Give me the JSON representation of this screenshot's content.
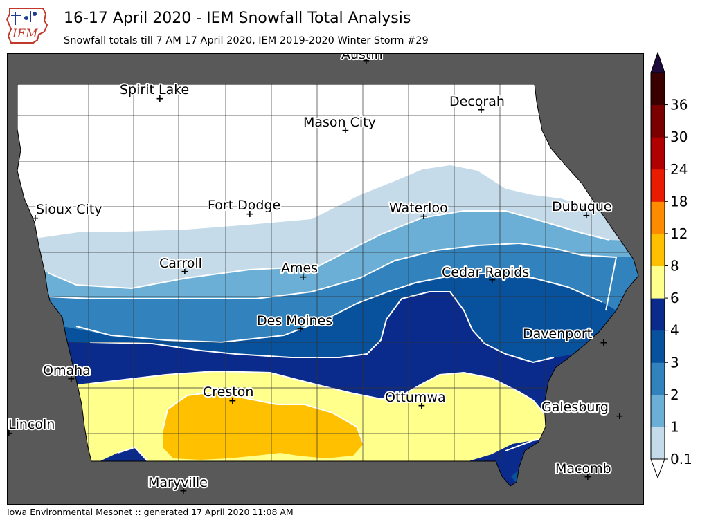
{
  "header": {
    "title": "16-17 April 2020 - IEM Snowfall Total Analysis",
    "subtitle": "Snowfall totals till 7 AM 17 April 2020, IEM 2019-2020 Winter Storm #29",
    "logo_text": "IEM"
  },
  "footer": {
    "text": "Iowa Environmental Mesonet :: generated 17 April 2020 11:08 AM"
  },
  "colorbar": {
    "ticks": [
      "0.1",
      "1",
      "2",
      "3",
      "4",
      "6",
      "8",
      "12",
      "18",
      "24",
      "30",
      "36"
    ],
    "colors": [
      "#c6dbe9",
      "#6baed6",
      "#3182bd",
      "#08519c",
      "#0a2a8c",
      "#ffff8c",
      "#ffc000",
      "#ff8c00",
      "#e81c00",
      "#b00000",
      "#7a0000",
      "#3a0000"
    ],
    "over_color": "#1e0a3c",
    "under_color": "#ffffff"
  },
  "map": {
    "background": "#595959",
    "cities": [
      "Austin",
      "Spirit Lake",
      "Decorah",
      "Mason City",
      "Sioux City",
      "Fort Dodge",
      "Waterloo",
      "Dubuque",
      "Carroll",
      "Ames",
      "Cedar Rapids",
      "Des Moines",
      "Davenport",
      "Omaha",
      "Creston",
      "Ottumwa",
      "Galesburg",
      "Lincoln",
      "Maryville",
      "Macomb"
    ]
  }
}
